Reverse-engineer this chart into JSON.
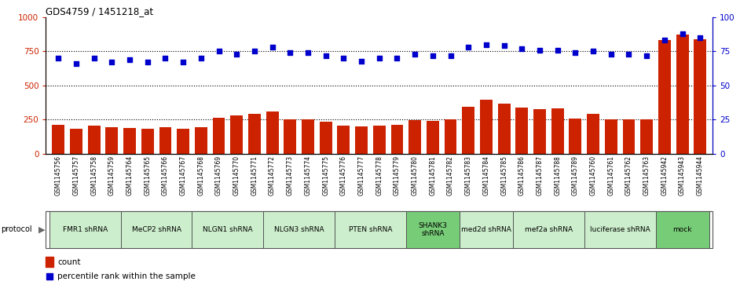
{
  "title": "GDS4759 / 1451218_at",
  "samples": [
    "GSM1145756",
    "GSM1145757",
    "GSM1145758",
    "GSM1145759",
    "GSM1145764",
    "GSM1145765",
    "GSM1145766",
    "GSM1145767",
    "GSM1145768",
    "GSM1145769",
    "GSM1145770",
    "GSM1145771",
    "GSM1145772",
    "GSM1145773",
    "GSM1145774",
    "GSM1145775",
    "GSM1145776",
    "GSM1145777",
    "GSM1145778",
    "GSM1145779",
    "GSM1145780",
    "GSM1145781",
    "GSM1145782",
    "GSM1145783",
    "GSM1145784",
    "GSM1145785",
    "GSM1145786",
    "GSM1145787",
    "GSM1145788",
    "GSM1145789",
    "GSM1145760",
    "GSM1145761",
    "GSM1145762",
    "GSM1145763",
    "GSM1145942",
    "GSM1145943",
    "GSM1145944"
  ],
  "counts": [
    210,
    185,
    205,
    195,
    190,
    185,
    195,
    185,
    195,
    265,
    280,
    295,
    310,
    255,
    255,
    235,
    205,
    200,
    205,
    215,
    245,
    240,
    250,
    345,
    395,
    370,
    340,
    330,
    335,
    260,
    295,
    255,
    255,
    255,
    830,
    870,
    840
  ],
  "percentiles": [
    70,
    66,
    70,
    67,
    69,
    67,
    70,
    67,
    70,
    75,
    73,
    75,
    78,
    74,
    74,
    72,
    70,
    68,
    70,
    70,
    73,
    72,
    72,
    78,
    80,
    79,
    77,
    76,
    76,
    74,
    75,
    73,
    73,
    72,
    83,
    88,
    85
  ],
  "groups": [
    {
      "label": "FMR1 shRNA",
      "start": 0,
      "end": 4,
      "color": "#cceecc"
    },
    {
      "label": "MeCP2 shRNA",
      "start": 4,
      "end": 8,
      "color": "#cceecc"
    },
    {
      "label": "NLGN1 shRNA",
      "start": 8,
      "end": 12,
      "color": "#cceecc"
    },
    {
      "label": "NLGN3 shRNA",
      "start": 12,
      "end": 16,
      "color": "#cceecc"
    },
    {
      "label": "PTEN shRNA",
      "start": 16,
      "end": 20,
      "color": "#cceecc"
    },
    {
      "label": "SHANK3\nshRNA",
      "start": 20,
      "end": 23,
      "color": "#77cc77"
    },
    {
      "label": "med2d shRNA",
      "start": 23,
      "end": 26,
      "color": "#cceecc"
    },
    {
      "label": "mef2a shRNA",
      "start": 26,
      "end": 30,
      "color": "#cceecc"
    },
    {
      "label": "luciferase shRNA",
      "start": 30,
      "end": 34,
      "color": "#cceecc"
    },
    {
      "label": "mock",
      "start": 34,
      "end": 37,
      "color": "#77cc77"
    }
  ],
  "bar_color": "#cc2200",
  "dot_color": "#0000cc",
  "hlines": [
    250,
    500,
    750
  ],
  "ylim_left": [
    0,
    1000
  ],
  "ylim_right": [
    0,
    100
  ],
  "yticks_left": [
    0,
    250,
    500,
    750,
    1000
  ],
  "yticks_right": [
    0,
    25,
    50,
    75,
    100
  ],
  "left_color": "#cc2200",
  "right_color": "#0000cc",
  "plot_bg": "#ffffff",
  "xtick_bg": "#d8d8d8"
}
